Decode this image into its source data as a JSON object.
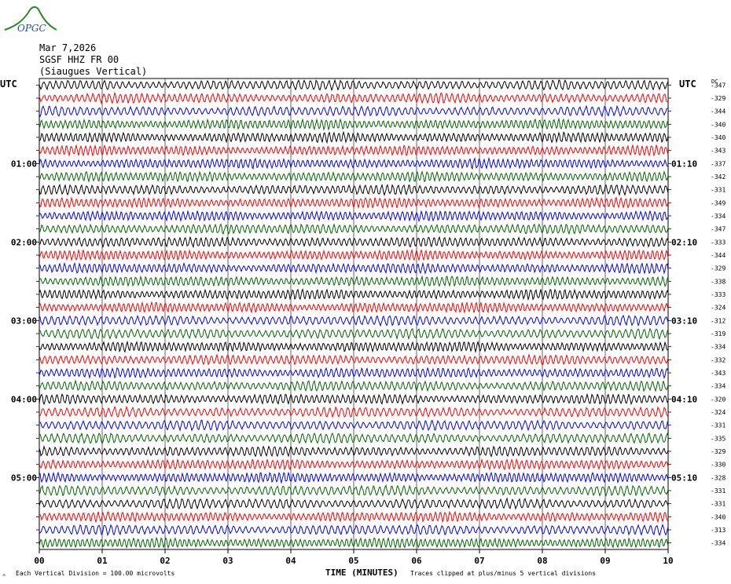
{
  "logo": {
    "text": "OPGC",
    "icon": "opgc-logo-icon"
  },
  "header": {
    "date": "Mar 7,2026",
    "station": "SGSF HHZ FR 00",
    "location": "(Siaugues Vertical)"
  },
  "left_utc_label": "UTC",
  "right_utc_label": "UTC",
  "dc_label": "DC",
  "footer": {
    "xlabel": "TIME (MINUTES)",
    "division_note": "Each Vertical Division =  100.00 microvolts",
    "clip_note": "Traces clipped at plus/minus 5 vertical divisions",
    "corner_mark": "^"
  },
  "colors": {
    "trace_cycle": [
      "#000000",
      "#ff0000",
      "#0000ff",
      "#006600"
    ],
    "grid": "#000000"
  },
  "chart_data": {
    "type": "line",
    "title": "",
    "xlabel": "TIME (MINUTES)",
    "x_ticks": [
      "00",
      "01",
      "02",
      "03",
      "04",
      "05",
      "06",
      "07",
      "08",
      "09",
      "10"
    ],
    "xlim": [
      0,
      10
    ],
    "left_hour_labels": [
      "01:00",
      "02:00",
      "03:00",
      "04:00",
      "05:00"
    ],
    "right_hour_labels": [
      "01:10",
      "02:10",
      "03:10",
      "04:10",
      "05:10"
    ],
    "hour_label_rows": [
      6,
      12,
      18,
      24,
      30
    ],
    "row_count": 36,
    "dc_offsets": [
      "-347",
      "-329",
      "-344",
      "-340",
      "-340",
      "-343",
      "-337",
      "-342",
      "-331",
      "-349",
      "-334",
      "-347",
      "-333",
      "-344",
      "-329",
      "-338",
      "-333",
      "-324",
      "-312",
      "-319",
      "-334",
      "-332",
      "-343",
      "-334",
      "-320",
      "-324",
      "-331",
      "-335",
      "-329",
      "-330",
      "-328",
      "-331",
      "-331",
      "-340",
      "-313",
      "-334"
    ]
  }
}
